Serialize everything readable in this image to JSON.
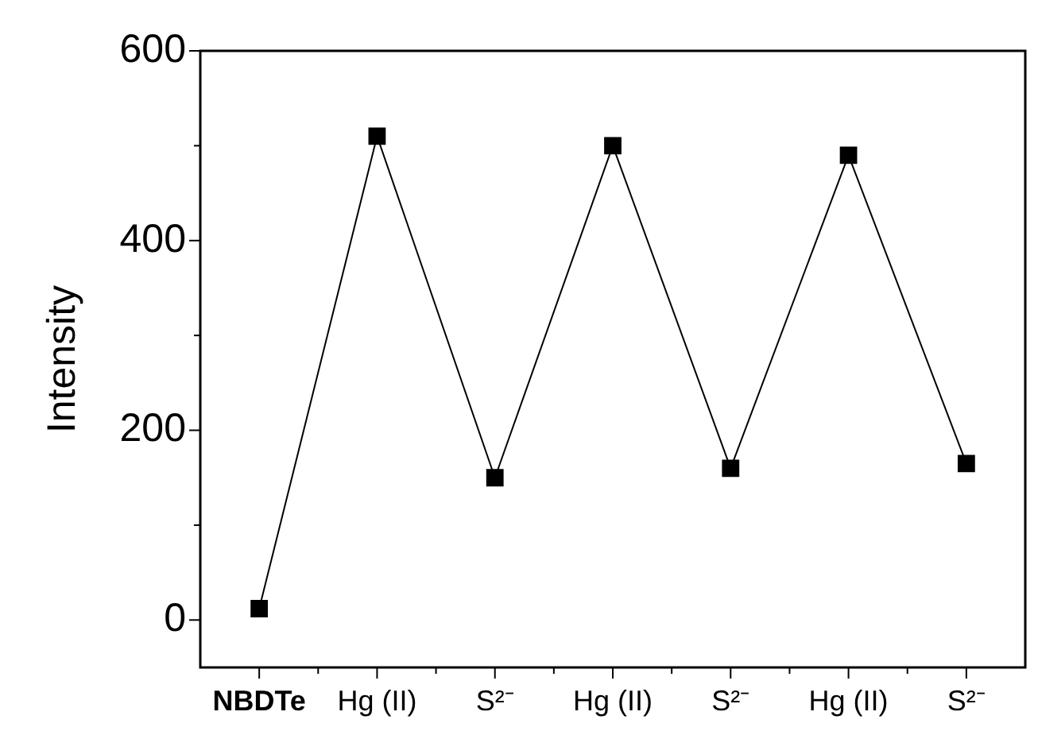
{
  "chart_data": {
    "type": "line",
    "ylabel": "Intensity",
    "categories": [
      "NBDTe",
      "Hg (II)",
      "S²⁻",
      "Hg (II)",
      "S²⁻",
      "Hg (II)",
      "S²⁻"
    ],
    "series": [
      {
        "color": "#000000",
        "values": [
          12,
          510,
          150,
          500,
          160,
          490,
          165
        ]
      }
    ],
    "ylim": [
      -50,
      600
    ],
    "yticks": [
      0,
      {
        "value": 100,
        "label": null
      },
      200,
      {
        "value": 300,
        "label": null
      },
      400,
      {
        "value": 500,
        "label": null
      },
      600
    ],
    "marker": "square",
    "line_style": "solid",
    "grid": false,
    "legend": false
  }
}
